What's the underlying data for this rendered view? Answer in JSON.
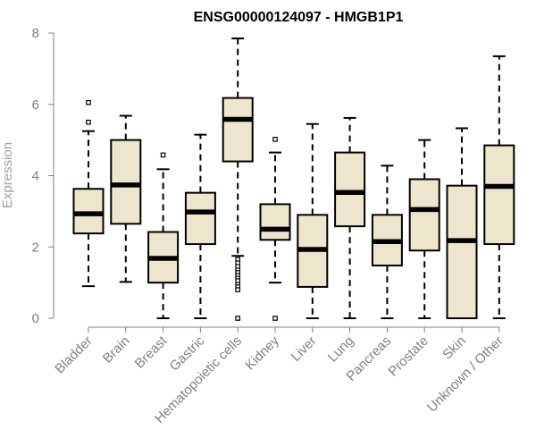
{
  "chart_data": {
    "type": "boxplot",
    "title": "ENSG00000124097 - HMGB1P1",
    "xlabel": "",
    "ylabel": "Expression",
    "ylim": [
      0,
      8
    ],
    "yticks": [
      "0",
      "2",
      "4",
      "6",
      "8"
    ],
    "categories": [
      "Bladder",
      "Brain",
      "Breast",
      "Gastric",
      "Hematopoietic cells",
      "Kidney",
      "Liver",
      "Lung",
      "Pancreas",
      "Prostate",
      "Skin",
      "Unknown / Other"
    ],
    "boxes": [
      {
        "min": 0.9,
        "q1": 2.38,
        "median": 2.93,
        "q3": 3.63,
        "max": 5.25,
        "outliers": [
          5.5,
          6.05
        ]
      },
      {
        "min": 1.02,
        "q1": 2.65,
        "median": 3.74,
        "q3": 5.0,
        "max": 5.68,
        "outliers": []
      },
      {
        "min": 0.0,
        "q1": 1.0,
        "median": 1.68,
        "q3": 2.42,
        "max": 4.18,
        "outliers": [
          4.58
        ]
      },
      {
        "min": 0.0,
        "q1": 2.08,
        "median": 2.98,
        "q3": 3.52,
        "max": 5.15,
        "outliers": []
      },
      {
        "min": 1.75,
        "q1": 4.4,
        "median": 5.58,
        "q3": 6.18,
        "max": 7.85,
        "outliers": [
          1.65,
          1.55,
          1.45,
          1.35,
          1.28,
          1.2,
          1.12,
          1.05,
          0.95,
          0.88,
          0.8,
          0.0
        ]
      },
      {
        "min": 1.0,
        "q1": 2.2,
        "median": 2.5,
        "q3": 3.2,
        "max": 4.65,
        "outliers": [
          5.02,
          0.0
        ]
      },
      {
        "min": 0.0,
        "q1": 0.88,
        "median": 1.93,
        "q3": 2.9,
        "max": 5.45,
        "outliers": []
      },
      {
        "min": 0.0,
        "q1": 2.58,
        "median": 3.53,
        "q3": 4.65,
        "max": 5.62,
        "outliers": []
      },
      {
        "min": 0.0,
        "q1": 1.48,
        "median": 2.15,
        "q3": 2.9,
        "max": 4.28,
        "outliers": []
      },
      {
        "min": 0.0,
        "q1": 1.9,
        "median": 3.05,
        "q3": 3.9,
        "max": 5.0,
        "outliers": []
      },
      {
        "min": 0.0,
        "q1": 0.0,
        "median": 2.18,
        "q3": 3.72,
        "max": 5.33,
        "outliers": []
      },
      {
        "min": 0.0,
        "q1": 2.08,
        "median": 3.7,
        "q3": 4.85,
        "max": 7.35,
        "outliers": []
      }
    ],
    "box_fill": "#ede6cc",
    "line_color": "#000000",
    "axis_color": "#808080",
    "grid": false,
    "legend": "none"
  }
}
